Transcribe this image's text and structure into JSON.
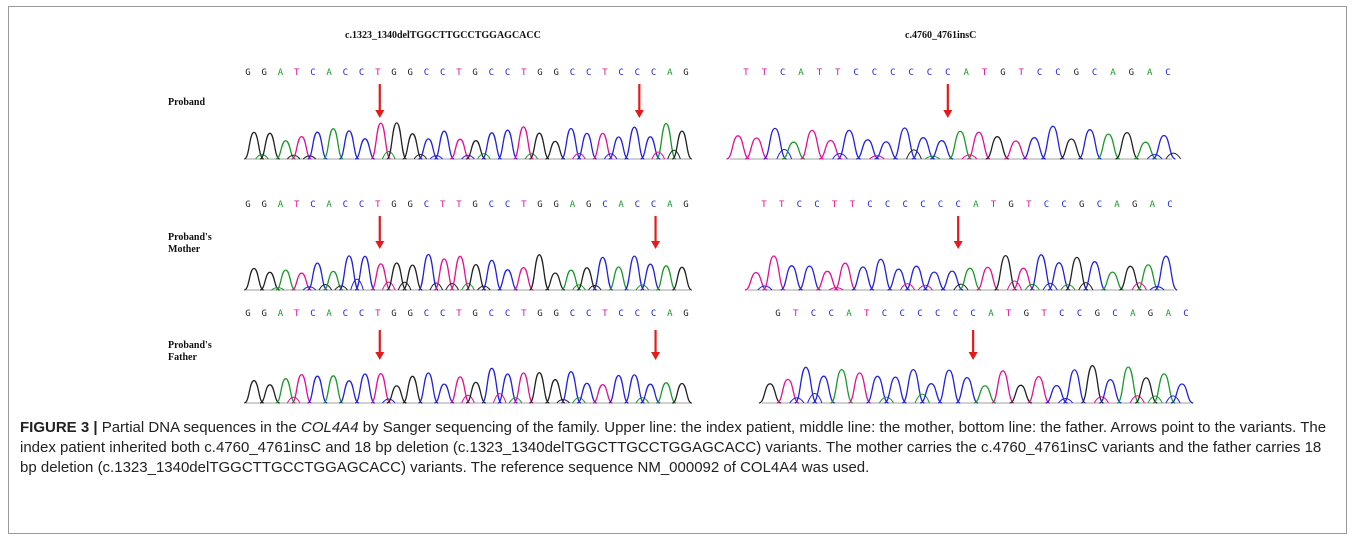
{
  "figure": {
    "variant_left": "c.1323_1340delTGGCTTGCCTGGAGCACC",
    "variant_right": "c.4760_4761insC",
    "rows": [
      {
        "id": "proband",
        "label_lines": [
          "Proband"
        ],
        "left_seq": "GGATCACCTGGCCTGCCTGGCCTCCCAG",
        "right_seq": "TTCATTCCCCCCATGTCCGCAGAC",
        "arrows_left": [
          8,
          24
        ],
        "arrows_right": [
          11
        ]
      },
      {
        "id": "mother",
        "label_lines": [
          "Proband's",
          "Mother"
        ],
        "left_seq": "GGATCACCTGGCTTGCCTGGAGCACCAG",
        "right_seq": "TTCCTTCCCCCCATGTCCGCAGAC",
        "arrows_left": [
          8,
          25
        ],
        "arrows_right": [
          11
        ]
      },
      {
        "id": "father",
        "label_lines": [
          "Proband's",
          "Father"
        ],
        "left_seq": "GGATCACCTGGCCTGCCTGGCCTCCCAG",
        "right_seq": "GTCCATCCCCCCATGTCCGCAGAC",
        "arrows_left": [
          8,
          25
        ],
        "arrows_right": [
          11
        ]
      }
    ],
    "base_colors": {
      "A": "#1a9a2a",
      "C": "#2222dd",
      "G": "#222222",
      "T": "#e0109a"
    },
    "arrow_color": "#e31b1b"
  },
  "caption": {
    "label": "FIGURE 3 |",
    "text_before_gene": " Partial DNA sequences in the ",
    "gene": "COL4A4",
    "text_after_gene": " by Sanger sequencing of the family. Upper line: the index patient, middle line: the mother, bottom line: the father. Arrows point to the variants. The index patient inherited both c.4760_4761insC and 18 bp deletion (c.1323_1340delTGGCTTGCCTGGAGCACC) variants. The mother carries the c.4760_4761insC variants and the father carries 18 bp deletion (c.1323_1340delTGGCTTGCCTGGAGCACC) variants. The reference sequence NM_000092 of COL4A4 was used."
  }
}
